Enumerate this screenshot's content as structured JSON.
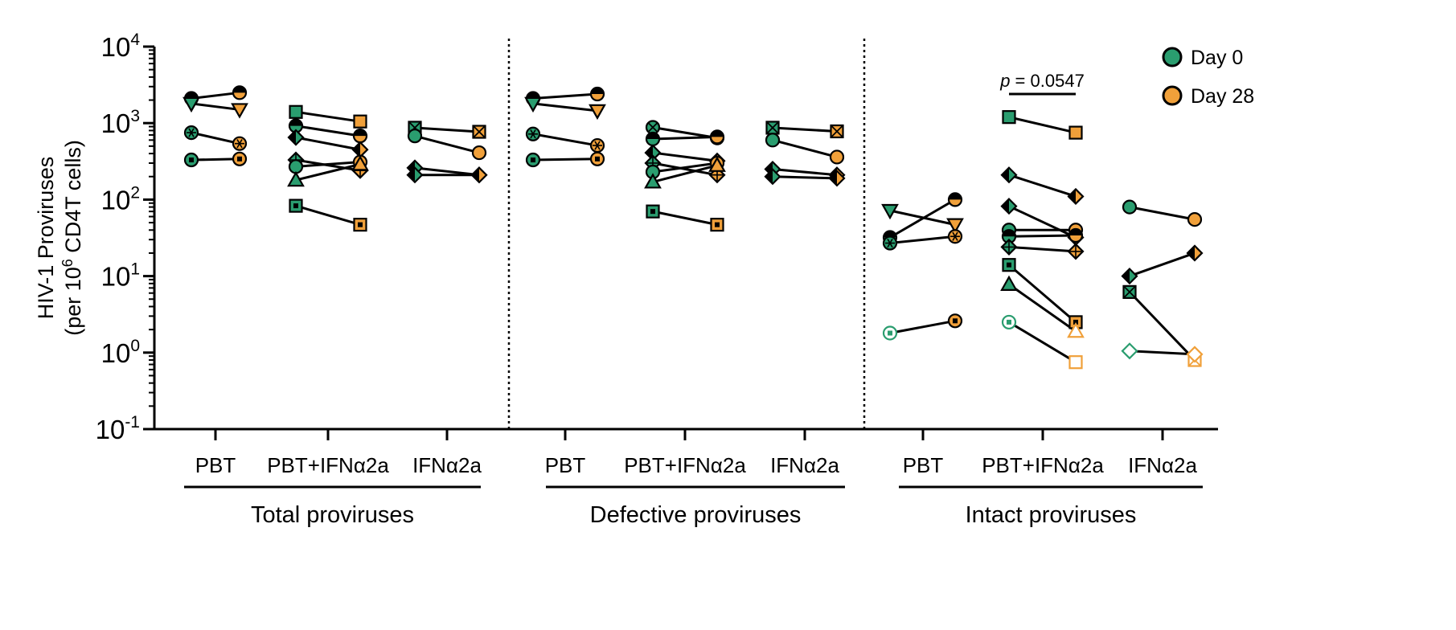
{
  "colors": {
    "day0": "#2a9d6f",
    "day28": "#f0a03a",
    "line": "#000000"
  },
  "chart_data": {
    "type": "scatter",
    "subtype": "paired before-after plot",
    "yaxis": {
      "label_line1": "HIV-1 Proviruses",
      "label_line2_prefix": "(per 10",
      "label_line2_sup": "6",
      "label_line2_suffix": " CD4T cells)",
      "scale": "log10",
      "ylim": [
        0.1,
        10000
      ],
      "ticks": [
        {
          "value": 10000,
          "base": "10",
          "exp": "4"
        },
        {
          "value": 1000,
          "base": "10",
          "exp": "3"
        },
        {
          "value": 100,
          "base": "10",
          "exp": "2"
        },
        {
          "value": 10,
          "base": "10",
          "exp": "1"
        },
        {
          "value": 1,
          "base": "10",
          "exp": "0"
        },
        {
          "value": 0.1,
          "base": "10",
          "exp": "-1"
        }
      ]
    },
    "legend": {
      "position": "top-right",
      "entries": [
        {
          "label": "Day 0",
          "color_key": "day0"
        },
        {
          "label": "Day 28",
          "color_key": "day28"
        }
      ]
    },
    "annotation": {
      "p_label": "p",
      "p_value": " = 0.0547",
      "section": 2,
      "group": 1
    },
    "sections": [
      {
        "label": "Total proviruses",
        "groups": [
          {
            "label": "PBT",
            "pairs": [
              {
                "marker": "half-circle",
                "day0": 2100,
                "day28": 2500
              },
              {
                "marker": "triangle-down",
                "day0": 1800,
                "day28": 1500
              },
              {
                "marker": "star-circle",
                "day0": 750,
                "day28": 540
              },
              {
                "marker": "circle-dot",
                "day0": 330,
                "day28": 340
              }
            ]
          },
          {
            "label": "PBT+IFNα2a",
            "pairs": [
              {
                "marker": "square",
                "day0": 1400,
                "day28": 1050
              },
              {
                "marker": "half-circle",
                "day0": 920,
                "day28": 680
              },
              {
                "marker": "diamond",
                "day0": 650,
                "day28": 450
              },
              {
                "marker": "plus-diamond",
                "day0": 330,
                "day28": 240
              },
              {
                "marker": "circle",
                "day0": 270,
                "day28": 310
              },
              {
                "marker": "triangle",
                "day0": 180,
                "day28": 290
              },
              {
                "marker": "square-dot",
                "day0": 83,
                "day28": 47
              }
            ]
          },
          {
            "label": "IFNα2a",
            "pairs": [
              {
                "marker": "square-x",
                "day0": 870,
                "day28": 770
              },
              {
                "marker": "circle",
                "day0": 680,
                "day28": 410
              },
              {
                "marker": "diamond",
                "day0": 260,
                "day28": 210
              },
              {
                "marker": "diamond",
                "day0": 210,
                "day28": 210
              }
            ]
          }
        ]
      },
      {
        "label": "Defective proviruses",
        "groups": [
          {
            "label": "PBT",
            "pairs": [
              {
                "marker": "half-circle",
                "day0": 2100,
                "day28": 2400
              },
              {
                "marker": "triangle-down",
                "day0": 1800,
                "day28": 1450
              },
              {
                "marker": "star-circle",
                "day0": 720,
                "day28": 510
              },
              {
                "marker": "circle-dot",
                "day0": 330,
                "day28": 340
              }
            ]
          },
          {
            "label": "PBT+IFNα2a",
            "pairs": [
              {
                "marker": "circle-x",
                "day0": 880,
                "day28": 640
              },
              {
                "marker": "half-circle",
                "day0": 620,
                "day28": 660
              },
              {
                "marker": "diamond",
                "day0": 410,
                "day28": 320
              },
              {
                "marker": "plus-diamond",
                "day0": 300,
                "day28": 210
              },
              {
                "marker": "circle",
                "day0": 230,
                "day28": 300
              },
              {
                "marker": "triangle",
                "day0": 170,
                "day28": 280
              },
              {
                "marker": "square-dot",
                "day0": 70,
                "day28": 47
              }
            ]
          },
          {
            "label": "IFNα2a",
            "pairs": [
              {
                "marker": "square-x",
                "day0": 870,
                "day28": 780
              },
              {
                "marker": "circle",
                "day0": 600,
                "day28": 360
              },
              {
                "marker": "diamond",
                "day0": 250,
                "day28": 210
              },
              {
                "marker": "diamond",
                "day0": 200,
                "day28": 190
              }
            ]
          }
        ]
      },
      {
        "label": "Intact proviruses",
        "groups": [
          {
            "label": "PBT",
            "pairs": [
              {
                "marker": "triangle-down",
                "day0": 72,
                "day28": 47
              },
              {
                "marker": "half-circle",
                "day0": 32,
                "day28": 100
              },
              {
                "marker": "star-circle",
                "day0": 27,
                "day28": 33
              },
              {
                "marker": "circle-dot",
                "day0": 1.8,
                "day28": 2.6,
                "open0": true
              }
            ]
          },
          {
            "label": "PBT+IFNα2a",
            "pairs": [
              {
                "marker": "square",
                "day0": 1200,
                "day28": 750
              },
              {
                "marker": "diamond",
                "day0": 210,
                "day28": 110
              },
              {
                "marker": "diamond",
                "day0": 82,
                "day28": 32
              },
              {
                "marker": "circle",
                "day0": 40,
                "day28": 40
              },
              {
                "marker": "half-circle",
                "day0": 33,
                "day28": 34
              },
              {
                "marker": "plus-diamond",
                "day0": 24,
                "day28": 21
              },
              {
                "marker": "square-dot",
                "day0": 14,
                "day28": 2.5
              },
              {
                "marker": "triangle",
                "day0": 7.8,
                "day28": 1.9,
                "open28": true
              },
              {
                "marker": "circle-dot",
                "day0": 2.5,
                "day28": 0.75,
                "open0": true,
                "open28": true,
                "marker28": "square"
              }
            ]
          },
          {
            "label": "IFNα2a",
            "pairs": [
              {
                "marker": "circle",
                "day0": 80,
                "day28": 55
              },
              {
                "marker": "diamond",
                "day0": 10,
                "day28": 20
              },
              {
                "marker": "square-x",
                "day0": 6.2,
                "day28": 0.8,
                "open28": true
              },
              {
                "marker": "diamond",
                "day0": 1.05,
                "day28": 0.95,
                "open0": true,
                "open28": true
              }
            ]
          }
        ]
      }
    ]
  }
}
